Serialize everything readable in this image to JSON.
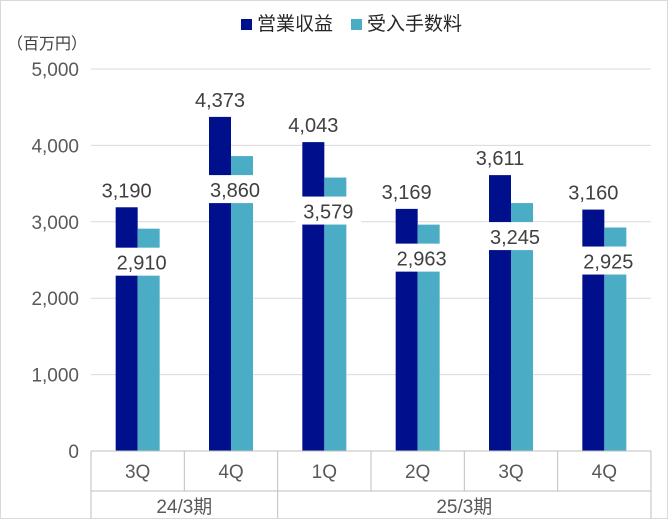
{
  "chart_data": {
    "type": "bar",
    "unit_label": "（百万円）",
    "ylim": [
      0,
      5000
    ],
    "yticks": [
      "0",
      "1,000",
      "2,000",
      "3,000",
      "4,000",
      "5,000"
    ],
    "grid": true,
    "legend_position": "top",
    "categories": [
      "3Q",
      "4Q",
      "1Q",
      "2Q",
      "3Q",
      "4Q"
    ],
    "groups": [
      {
        "label": "24/3期",
        "span": 2
      },
      {
        "label": "25/3期",
        "span": 4
      }
    ],
    "series": [
      {
        "name": "営業収益",
        "color": "#000f8c",
        "values": [
          3190,
          4373,
          4043,
          3169,
          3611,
          3160
        ],
        "labels": [
          "3,190",
          "4,373",
          "4,043",
          "3,169",
          "3,611",
          "3,160"
        ]
      },
      {
        "name": "受入手数料",
        "color": "#4bacc6",
        "values": [
          2910,
          3860,
          3579,
          2963,
          3245,
          2925
        ],
        "labels": [
          "2,910",
          "3,860",
          "3,579",
          "2,963",
          "3,245",
          "2,925"
        ]
      }
    ]
  }
}
